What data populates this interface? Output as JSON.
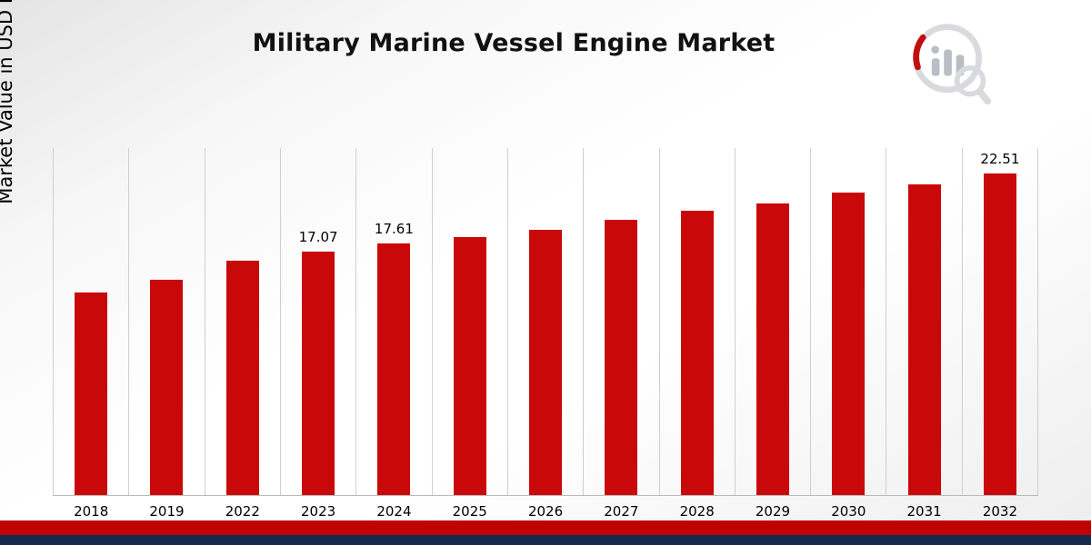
{
  "title": "Military Marine Vessel Engine Market",
  "ylabel": "Market Value in USD Billion",
  "colors": {
    "bar": "#c90909",
    "footer_red": "#c00202",
    "footer_navy": "#16294d",
    "gridline": "#cfcfcf"
  },
  "logo": {
    "name": "market-research-bar-chart-magnifier-logo"
  },
  "chart_data": {
    "type": "bar",
    "title": "Military Marine Vessel Engine Market",
    "xlabel": "",
    "ylabel": "Market Value in USD Billion",
    "categories": [
      "2018",
      "2019",
      "2022",
      "2023",
      "2024",
      "2025",
      "2026",
      "2027",
      "2028",
      "2029",
      "2030",
      "2031",
      "2032"
    ],
    "values": [
      14.2,
      15.05,
      16.4,
      17.07,
      17.61,
      18.05,
      18.55,
      19.3,
      19.9,
      20.45,
      21.2,
      21.75,
      22.51
    ],
    "data_labels": [
      "",
      "",
      "",
      "17.07",
      "17.61",
      "",
      "",
      "",
      "",
      "",
      "",
      "",
      "22.51"
    ],
    "ylim": [
      0,
      24.3
    ],
    "grid": "vertical",
    "legend": "none",
    "bar_color": "#c90909"
  }
}
